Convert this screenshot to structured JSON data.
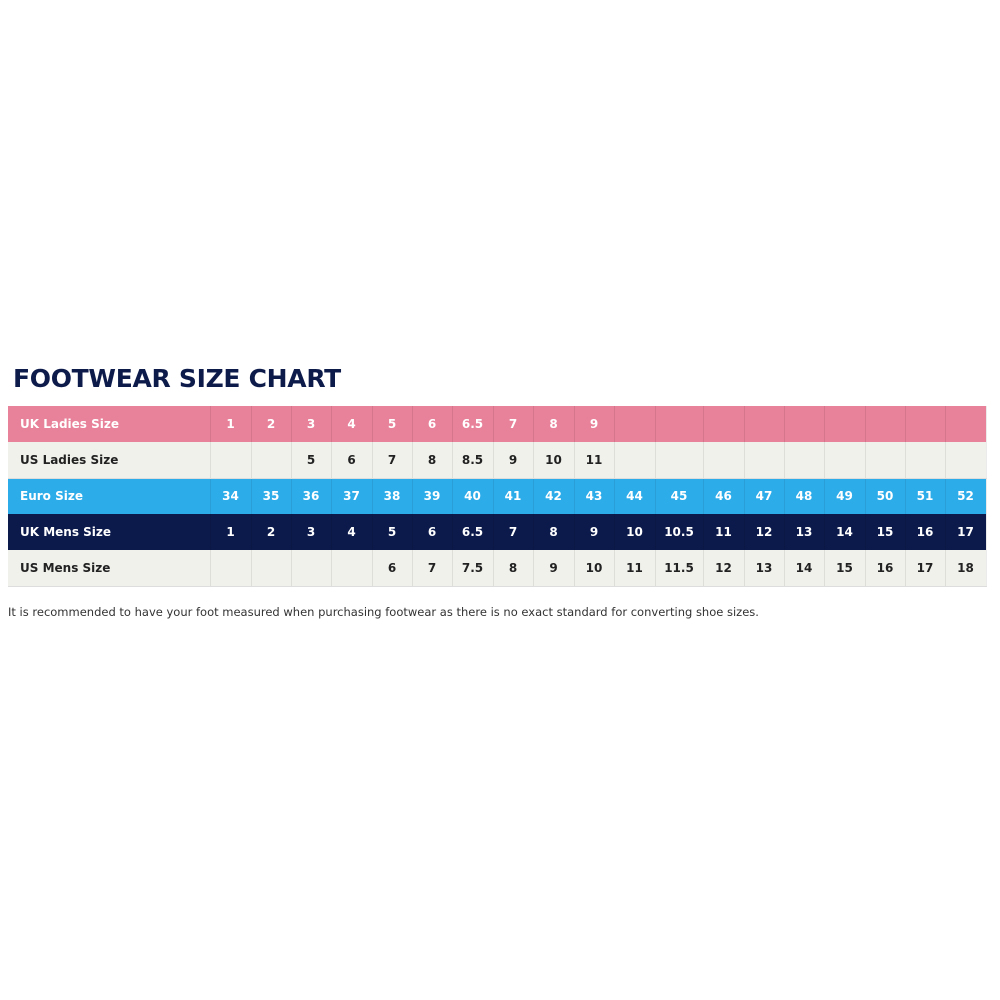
{
  "title": "FOOTWEAR SIZE CHART",
  "colors": {
    "uk_ladies": "#e8819a",
    "us_rows": "#f1f1ec",
    "euro": "#2dacea",
    "uk_mens": "#0c1a4b",
    "title": "#0d1b4b"
  },
  "rows": [
    {
      "label": "UK Ladies Size",
      "values": [
        "1",
        "2",
        "3",
        "4",
        "5",
        "6",
        "6.5",
        "7",
        "8",
        "9",
        "",
        "",
        "",
        "",
        "",
        "",
        "",
        "",
        ""
      ]
    },
    {
      "label": "US Ladies Size",
      "values": [
        "",
        "",
        "5",
        "6",
        "7",
        "8",
        "8.5",
        "9",
        "10",
        "11",
        "",
        "",
        "",
        "",
        "",
        "",
        "",
        "",
        ""
      ]
    },
    {
      "label": "Euro Size",
      "values": [
        "34",
        "35",
        "36",
        "37",
        "38",
        "39",
        "40",
        "41",
        "42",
        "43",
        "44",
        "45",
        "46",
        "47",
        "48",
        "49",
        "50",
        "51",
        "52"
      ]
    },
    {
      "label": "UK Mens Size",
      "values": [
        "1",
        "2",
        "3",
        "4",
        "5",
        "6",
        "6.5",
        "7",
        "8",
        "9",
        "10",
        "10.5",
        "11",
        "12",
        "13",
        "14",
        "15",
        "16",
        "17"
      ]
    },
    {
      "label": "US Mens Size",
      "values": [
        "",
        "",
        "",
        "",
        "6",
        "7",
        "7.5",
        "8",
        "9",
        "10",
        "11",
        "11.5",
        "12",
        "13",
        "14",
        "15",
        "16",
        "17",
        "18"
      ]
    }
  ],
  "note": "It is recommended to have your foot measured when purchasing footwear as there is no exact standard for converting shoe sizes."
}
